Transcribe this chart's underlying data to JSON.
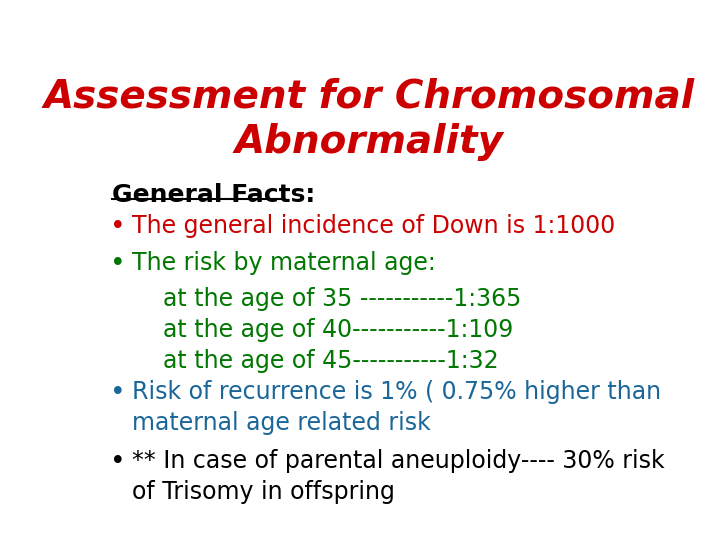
{
  "title_line1": "Assessment for Chromosomal",
  "title_line2": "Abnormality",
  "title_color": "#cc0000",
  "title_fontsize": 28,
  "section_header": "General Facts:",
  "section_header_color": "#000000",
  "section_header_fontsize": 18,
  "background_color": "#ffffff",
  "items": [
    {
      "text": "The general incidence of Down is 1:1000",
      "color": "#cc0000",
      "bullet": true,
      "multiline": false,
      "fontsize": 17
    },
    {
      "text": "The risk by maternal age:",
      "color": "#007700",
      "bullet": true,
      "multiline": false,
      "fontsize": 17
    },
    {
      "text": "at the age of 35 -----------1:365",
      "color": "#007700",
      "bullet": false,
      "multiline": false,
      "fontsize": 17
    },
    {
      "text": "at the age of 40-----------1:109",
      "color": "#007700",
      "bullet": false,
      "multiline": false,
      "fontsize": 17
    },
    {
      "text": "at the age of 45-----------1:32",
      "color": "#007700",
      "bullet": false,
      "multiline": false,
      "fontsize": 17
    },
    {
      "text": "Risk of recurrence is 1% ( 0.75% higher than\nmaternal age related risk",
      "color": "#1a6699",
      "bullet": true,
      "multiline": true,
      "fontsize": 17
    },
    {
      "text": "** In case of parental aneuploidy---- 30% risk\nof Trisomy in offspring",
      "color": "#000000",
      "bullet": true,
      "multiline": true,
      "fontsize": 17
    }
  ]
}
